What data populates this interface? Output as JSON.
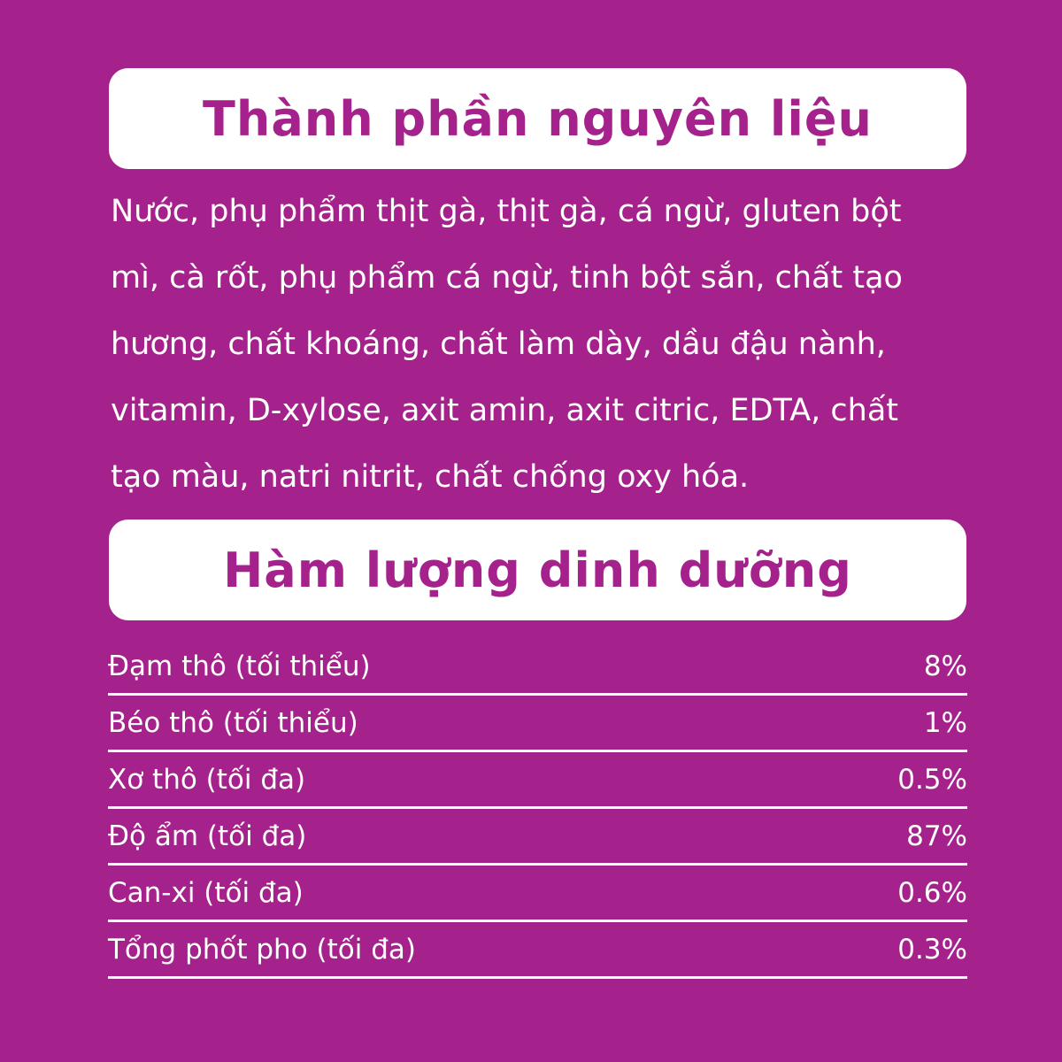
{
  "ingredients": {
    "title": "Thành phần nguyên liệu",
    "lines": [
      "Nước, phụ phẩm thịt gà, thịt gà, cá ngừ, gluten bột",
      "mì, cà rốt, phụ phẩm cá ngừ, tinh bột sắn, chất tạo",
      "hương, chất khoáng, chất làm dày, dầu đậu nành,",
      "vitamin, D-xylose, axit amin, axit citric, EDTA, chất",
      "tạo màu, natri nitrit, chất chống oxy hóa."
    ]
  },
  "nutrition": {
    "title": "Hàm lượng dinh dưỡng",
    "rows": [
      {
        "label": "Đạm thô (tối thiểu)",
        "value": "8%"
      },
      {
        "label": "Béo thô (tối thiểu)",
        "value": "1%"
      },
      {
        "label": "Xơ thô (tối đa)",
        "value": "0.5%"
      },
      {
        "label": "Độ ẩm (tối đa)",
        "value": "87%"
      },
      {
        "label": "Can-xi (tối đa)",
        "value": "0.6%"
      },
      {
        "label": "Tổng phốt pho (tối đa)",
        "value": "0.3%"
      }
    ]
  },
  "colors": {
    "background": "#a5228c",
    "banner": "#ffffff"
  }
}
